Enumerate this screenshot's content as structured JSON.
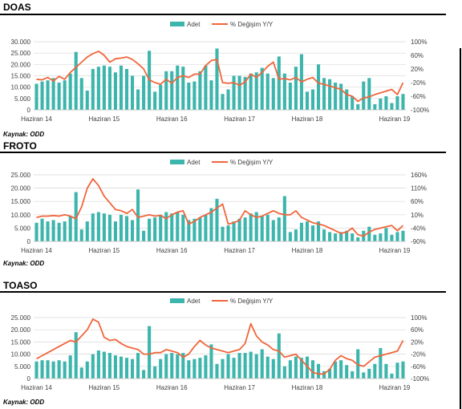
{
  "panels": [
    {
      "title": "DOAS",
      "source": "Kaynak: ODD"
    },
    {
      "title": "FROTO",
      "source": "Kaynak: ODD"
    },
    {
      "title": "TOASO",
      "source": "Kaynak: ODD"
    }
  ],
  "colors": {
    "bar": "#3cb5ac",
    "line": "#f0663c"
  },
  "chart_data": [
    {
      "type": "bar",
      "title": "DOAS",
      "legend": [
        "Adet",
        "% Değişim Y/Y"
      ],
      "legend_placement": "top-center",
      "x_tick_labels": [
        "Haziran 14",
        "Haziran 15",
        "Haziran 16",
        "Haziran 17",
        "Haziran 18",
        "Haziran 19"
      ],
      "y_left_ticks": [
        "0",
        "5.000",
        "10.000",
        "15.000",
        "20.000",
        "25.000",
        "30.000"
      ],
      "y_left_range": [
        0,
        30000
      ],
      "y_right_ticks": [
        "-100%",
        "-60%",
        "-20%",
        "20%",
        "60%",
        "100%"
      ],
      "y_right_range": [
        -100,
        100
      ],
      "grid": true,
      "series": [
        {
          "name": "Adet",
          "axis": "left",
          "values": [
            11500,
            12500,
            13000,
            14000,
            12000,
            13000,
            16000,
            25500,
            14000,
            8500,
            18000,
            19000,
            19500,
            19000,
            16500,
            19500,
            18000,
            15000,
            9000,
            15000,
            26000,
            8000,
            11000,
            17000,
            17000,
            19500,
            19000,
            12000,
            12500,
            17000,
            19500,
            13000,
            27000,
            7000,
            9000,
            15000,
            15000,
            14500,
            16000,
            16500,
            18500,
            16000,
            14000,
            23500,
            16000,
            12000,
            19000,
            24500,
            8000,
            9000,
            20000,
            14000,
            13500,
            12000,
            11500,
            9000,
            6000,
            2500,
            12500,
            14000,
            2500,
            5000,
            6000,
            3000,
            6000,
            7000
          ]
        },
        {
          "name": "% Değişim Y/Y",
          "axis": "right",
          "values": [
            -10,
            -12,
            -5,
            -15,
            -2,
            -10,
            10,
            25,
            40,
            55,
            65,
            72,
            60,
            40,
            50,
            52,
            55,
            48,
            35,
            20,
            -12,
            -20,
            -25,
            -10,
            -22,
            -5,
            0,
            -5,
            5,
            5,
            30,
            45,
            48,
            -20,
            -22,
            -20,
            -28,
            -18,
            5,
            -5,
            10,
            28,
            40,
            -10,
            -8,
            -12,
            -5,
            -18,
            -10,
            -5,
            -22,
            -25,
            -30,
            -35,
            -40,
            -55,
            -60,
            -75,
            -65,
            -62,
            -55,
            -50,
            -45,
            -40,
            -55,
            -20
          ]
        }
      ]
    },
    {
      "type": "bar",
      "title": "FROTO",
      "legend": [
        "Adet",
        "% Değişim Y/Y"
      ],
      "legend_placement": "top-center",
      "x_tick_labels": [
        "Haziran 14",
        "Haziran 15",
        "Haziran 16",
        "Haziran 17",
        "Haziran 18",
        "Haziran 19"
      ],
      "y_left_ticks": [
        "0",
        "5.000",
        "10.000",
        "15.000",
        "20.000",
        "25.000"
      ],
      "y_left_range": [
        0,
        25000
      ],
      "y_right_ticks": [
        "-90%",
        "-40%",
        "10%",
        "60%",
        "110%",
        "160%"
      ],
      "y_right_range": [
        -90,
        160
      ],
      "grid": true,
      "series": [
        {
          "name": "Adet",
          "axis": "left",
          "values": [
            7000,
            8500,
            7500,
            8000,
            7000,
            7500,
            9500,
            18500,
            4500,
            7500,
            10500,
            11000,
            10500,
            10000,
            7500,
            10000,
            9500,
            8000,
            19500,
            4000,
            8500,
            9000,
            10000,
            11000,
            10500,
            11000,
            10000,
            8000,
            8500,
            9000,
            10000,
            12500,
            16000,
            5500,
            6000,
            7500,
            8500,
            9000,
            10500,
            11000,
            9500,
            10000,
            8000,
            9000,
            17000,
            3500,
            4500,
            7000,
            7500,
            6000,
            7500,
            4500,
            3500,
            3000,
            3500,
            4000,
            3000,
            1500,
            4000,
            5500,
            2500,
            3000,
            5000,
            2500,
            3500,
            4000
          ]
        },
        {
          "name": "% Değişim Y/Y",
          "axis": "right",
          "values": [
            0,
            5,
            5,
            7,
            5,
            10,
            5,
            -5,
            40,
            110,
            145,
            120,
            80,
            55,
            30,
            25,
            15,
            30,
            0,
            5,
            10,
            5,
            8,
            -5,
            10,
            20,
            25,
            -25,
            -15,
            0,
            10,
            20,
            35,
            50,
            -25,
            -20,
            -10,
            25,
            10,
            0,
            5,
            15,
            25,
            15,
            10,
            10,
            25,
            0,
            -10,
            -20,
            -25,
            -30,
            -40,
            -50,
            -60,
            -55,
            -40,
            -65,
            -70,
            -55,
            -45,
            -40,
            -35,
            -30,
            -50,
            -30
          ]
        }
      ]
    },
    {
      "type": "bar",
      "title": "TOASO",
      "legend": [
        "Adet",
        "% Değişim Y/Y"
      ],
      "legend_placement": "top-center",
      "x_tick_labels": [
        "Haziran 14",
        "Haziran 15",
        "Haziran 16",
        "Haziran 17",
        "Haziran 18",
        "Haziran 19"
      ],
      "y_left_ticks": [
        "0",
        "5.000",
        "10.000",
        "15.000",
        "20.000",
        "25.000"
      ],
      "y_left_range": [
        0,
        25000
      ],
      "y_right_ticks": [
        "-100%",
        "-60%",
        "-20%",
        "20%",
        "60%",
        "100%"
      ],
      "y_right_range": [
        -100,
        100
      ],
      "grid": true,
      "series": [
        {
          "name": "Adet",
          "axis": "left",
          "values": [
            7000,
            7500,
            7500,
            7000,
            7500,
            7000,
            9500,
            19000,
            4500,
            7000,
            10000,
            11500,
            11000,
            10500,
            9500,
            9000,
            8500,
            8000,
            10500,
            3500,
            21500,
            5000,
            8000,
            10000,
            10500,
            10000,
            10500,
            7500,
            8000,
            8500,
            9500,
            14000,
            6000,
            8000,
            10000,
            8500,
            10500,
            10500,
            11000,
            10000,
            12000,
            9000,
            8000,
            18500,
            5000,
            7500,
            9000,
            8500,
            9000,
            7500,
            6000,
            3000,
            4000,
            7000,
            7500,
            5500,
            3000,
            12000,
            2500,
            4000,
            6000,
            12500,
            6000,
            2000,
            6500,
            7000
          ]
        },
        {
          "name": "% Değişim Y/Y",
          "axis": "right",
          "values": [
            -35,
            -25,
            -15,
            -5,
            5,
            15,
            25,
            20,
            40,
            60,
            95,
            85,
            35,
            25,
            28,
            15,
            5,
            0,
            -5,
            -20,
            -20,
            -15,
            -15,
            -5,
            -10,
            -15,
            -30,
            -20,
            5,
            25,
            10,
            0,
            -5,
            -10,
            -15,
            -10,
            -5,
            15,
            80,
            40,
            20,
            10,
            -5,
            -10,
            -30,
            -25,
            -20,
            -40,
            -60,
            -80,
            -85,
            -85,
            -70,
            -40,
            -25,
            -35,
            -40,
            -55,
            -60,
            -45,
            -30,
            -25,
            -20,
            -15,
            -10,
            25
          ]
        }
      ]
    }
  ]
}
